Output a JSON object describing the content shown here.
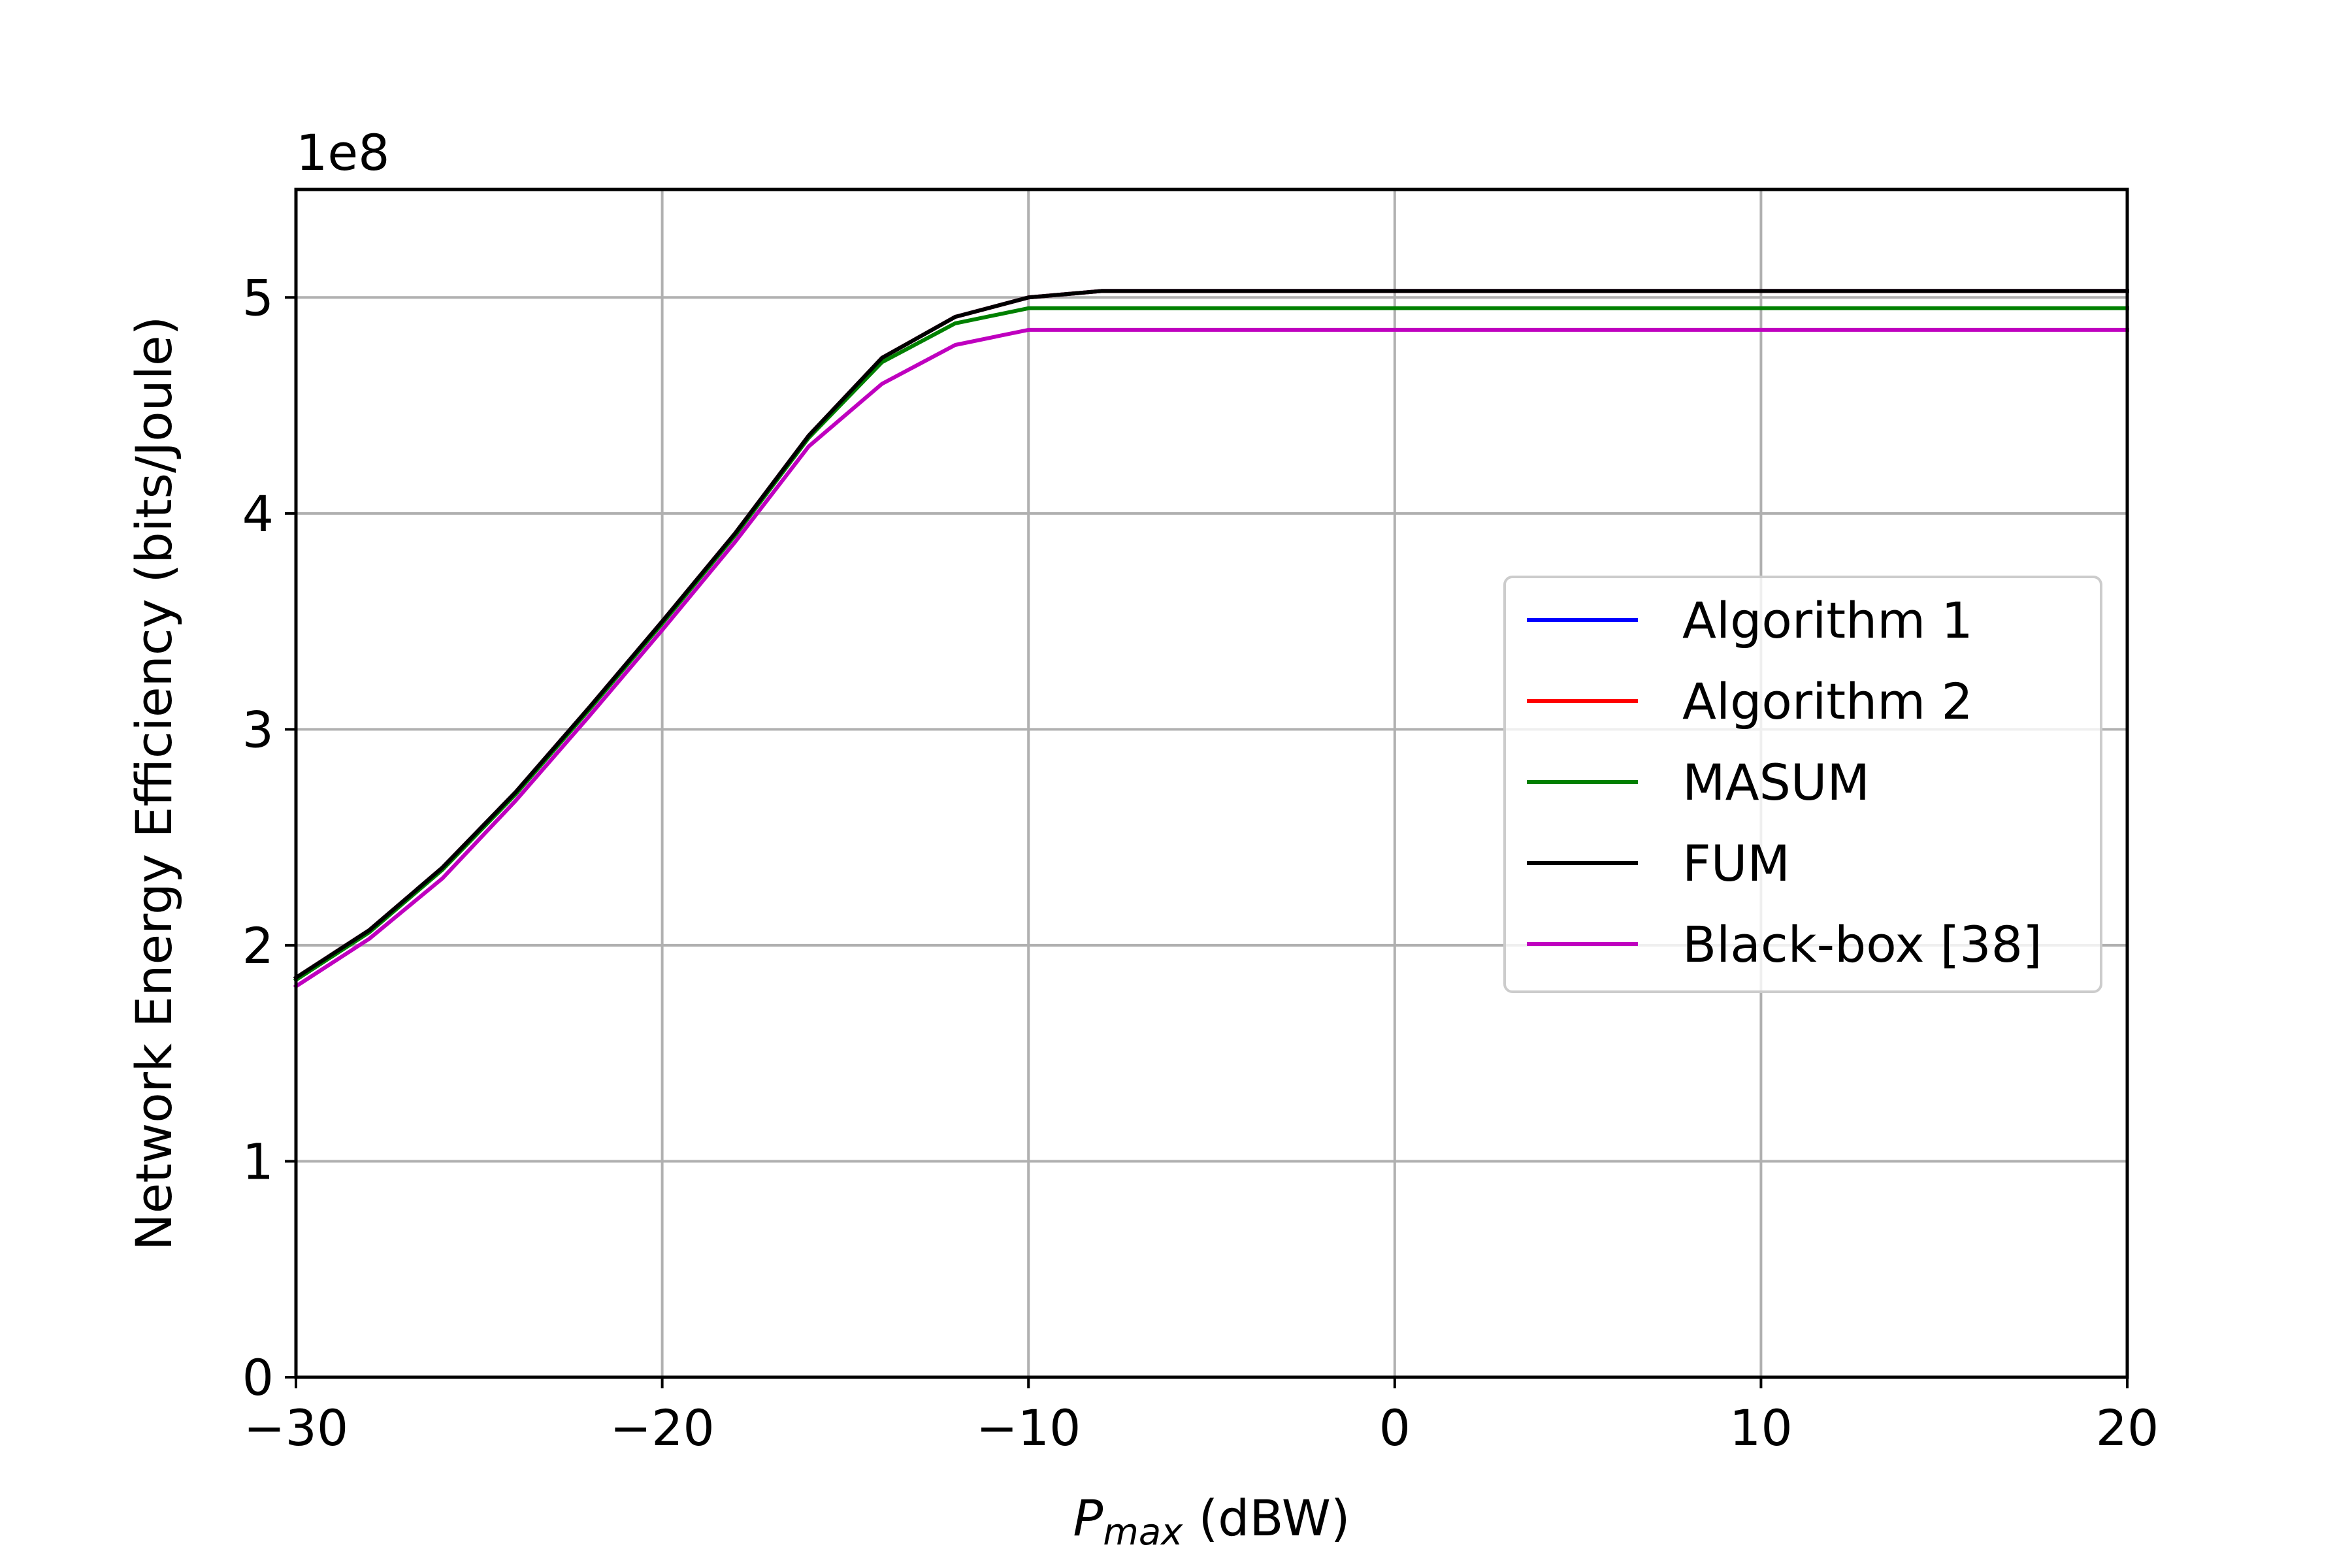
{
  "chart_data": {
    "type": "line",
    "title": "",
    "xlabel_main": "P",
    "xlabel_sub": "max",
    "xlabel_unit": " (dBW)",
    "ylabel": "Network Energy Efficiency (bits/Joule)",
    "y_offset_text": "1e8",
    "xlim": [
      -30,
      20
    ],
    "ylim": [
      0,
      5.5
    ],
    "x_ticks": [
      -30,
      -20,
      -10,
      0,
      10,
      20
    ],
    "x_tick_labels": [
      "−30",
      "−20",
      "−10",
      "0",
      "10",
      "20"
    ],
    "y_ticks": [
      0,
      1,
      2,
      3,
      4,
      5
    ],
    "y_tick_labels": [
      "0",
      "1",
      "2",
      "3",
      "4",
      "5"
    ],
    "grid": true,
    "legend_position": "center-right",
    "x": [
      -30,
      -28,
      -26,
      -24,
      -22,
      -20,
      -18,
      -16,
      -14,
      -12,
      -10,
      -8,
      -6,
      -4,
      -2,
      0,
      2,
      4,
      6,
      8,
      10,
      12,
      14,
      16,
      18,
      20
    ],
    "series": [
      {
        "name": "Algorithm 1",
        "color": "#0000ff",
        "values": [
          1.85,
          2.07,
          2.36,
          2.71,
          3.1,
          3.5,
          3.91,
          4.36,
          4.72,
          4.91,
          5.0,
          5.03,
          5.03,
          5.03,
          5.03,
          5.03,
          5.03,
          5.03,
          5.03,
          5.03,
          5.03,
          5.03,
          5.03,
          5.03,
          5.03,
          5.03
        ]
      },
      {
        "name": "Algorithm 2",
        "color": "#ff0000",
        "values": [
          1.85,
          2.07,
          2.36,
          2.71,
          3.1,
          3.5,
          3.91,
          4.36,
          4.72,
          4.91,
          5.0,
          5.03,
          5.03,
          5.03,
          5.03,
          5.03,
          5.03,
          5.03,
          5.03,
          5.03,
          5.03,
          5.03,
          5.03,
          5.03,
          5.03,
          5.03
        ]
      },
      {
        "name": "MASUM",
        "color": "#008000",
        "values": [
          1.84,
          2.06,
          2.35,
          2.7,
          3.09,
          3.49,
          3.9,
          4.35,
          4.7,
          4.88,
          4.95,
          4.95,
          4.95,
          4.95,
          4.95,
          4.95,
          4.95,
          4.95,
          4.95,
          4.95,
          4.95,
          4.95,
          4.95,
          4.95,
          4.95,
          4.95
        ]
      },
      {
        "name": "FUM",
        "color": "#000000",
        "values": [
          1.85,
          2.07,
          2.36,
          2.71,
          3.1,
          3.5,
          3.91,
          4.36,
          4.72,
          4.91,
          5.0,
          5.03,
          5.03,
          5.03,
          5.03,
          5.03,
          5.03,
          5.03,
          5.03,
          5.03,
          5.03,
          5.03,
          5.03,
          5.03,
          5.03,
          5.03
        ]
      },
      {
        "name": "Black-box [38]",
        "color": "#bf00bf",
        "values": [
          1.81,
          2.03,
          2.31,
          2.67,
          3.06,
          3.46,
          3.87,
          4.31,
          4.6,
          4.78,
          4.85,
          4.85,
          4.85,
          4.85,
          4.85,
          4.85,
          4.85,
          4.85,
          4.85,
          4.85,
          4.85,
          4.85,
          4.85,
          4.85,
          4.85,
          4.85
        ]
      }
    ]
  }
}
